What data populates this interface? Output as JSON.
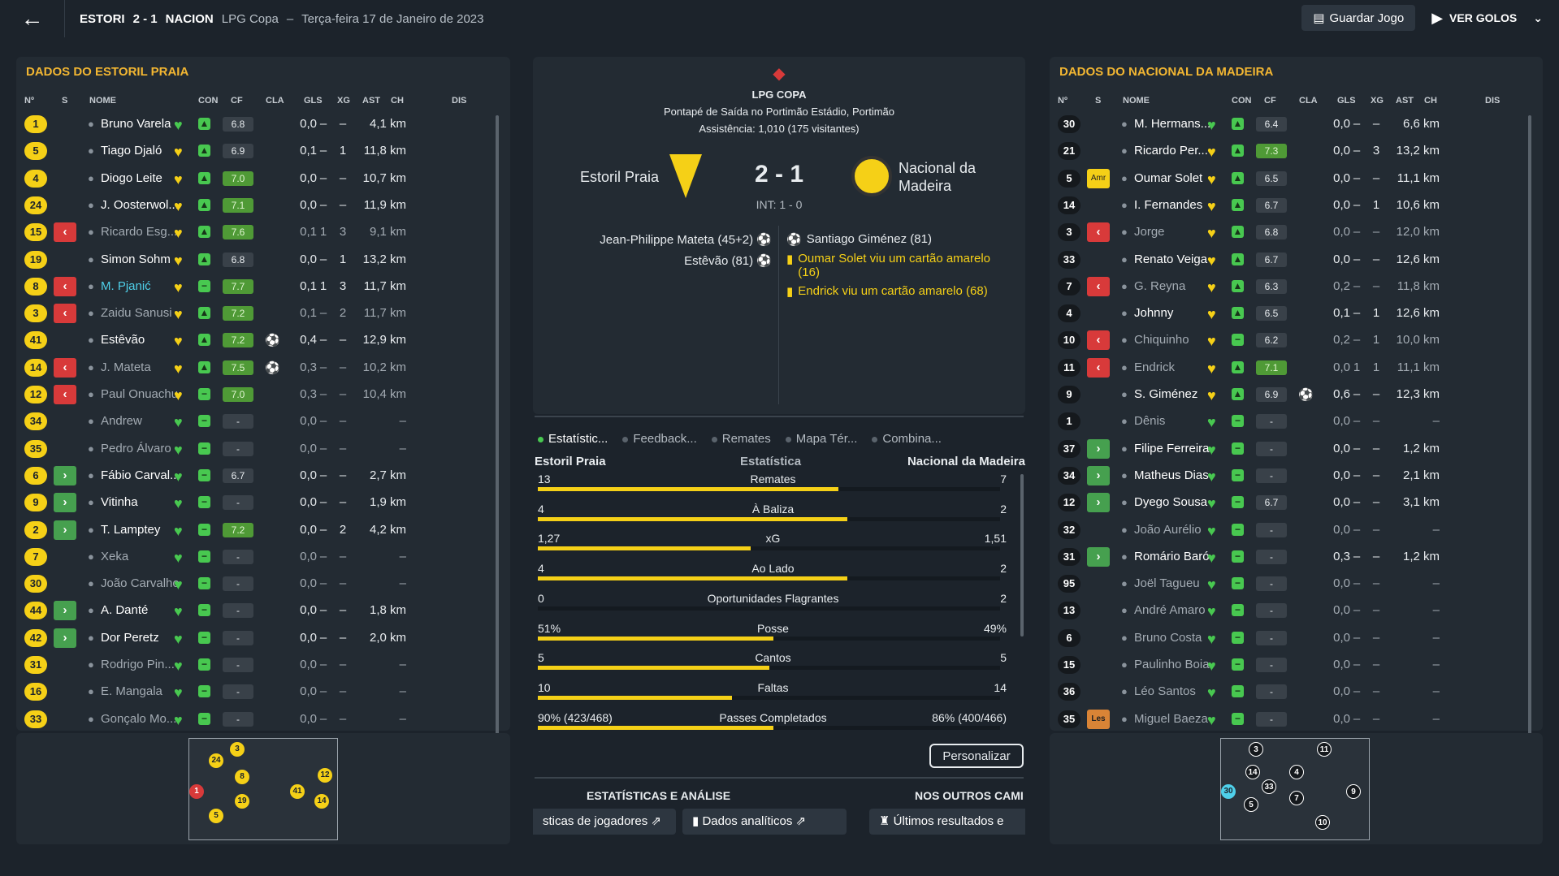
{
  "header": {
    "home_short": "ESTORI",
    "score": "2 - 1",
    "away_short": "NACION",
    "competition": "LPG Copa",
    "separator": "–",
    "date": "Terça-feira 17 de Janeiro de 2023",
    "save_label": "Guardar Jogo",
    "goals_label": "VER GOLOS"
  },
  "columns": {
    "no": "Nº",
    "s": "S",
    "name": "NOME",
    "con": "CON",
    "cf": "CF",
    "cla": "CLA",
    "gls": "GLS",
    "xg": "XG",
    "ast": "AST",
    "ch": "CH",
    "dis": "DIS"
  },
  "home": {
    "title": "DADOS DO ESTORIL PRAIA",
    "players": [
      {
        "num": "1",
        "sub": "",
        "name": "Bruno Varela",
        "cla": "6.8",
        "green": false,
        "gls": "",
        "xg": "0,0",
        "ast": "–",
        "ch": "–",
        "dis": "4,1 km",
        "heart": "g",
        "cf": "up"
      },
      {
        "num": "5",
        "sub": "",
        "name": "Tiago Djaló",
        "cla": "6.9",
        "green": false,
        "gls": "",
        "xg": "0,1",
        "ast": "–",
        "ch": "1",
        "dis": "11,8 km",
        "heart": "y",
        "cf": "up"
      },
      {
        "num": "4",
        "sub": "",
        "name": "Diogo Leite",
        "cla": "7.0",
        "green": true,
        "gls": "",
        "xg": "0,0",
        "ast": "–",
        "ch": "–",
        "dis": "10,7 km",
        "heart": "y",
        "cf": "up"
      },
      {
        "num": "24",
        "sub": "",
        "name": "J. Oosterwol...",
        "cla": "7.1",
        "green": true,
        "gls": "",
        "xg": "0,0",
        "ast": "–",
        "ch": "–",
        "dis": "11,9 km",
        "heart": "y",
        "cf": "up"
      },
      {
        "num": "15",
        "sub": "out",
        "name": "Ricardo Esg...",
        "cla": "7.6",
        "green": true,
        "gls": "",
        "xg": "0,1",
        "ast": "1",
        "ch": "3",
        "dis": "9,1 km",
        "heart": "y",
        "cf": "up",
        "dim": true
      },
      {
        "num": "19",
        "sub": "",
        "name": "Simon Sohm",
        "cla": "6.8",
        "green": false,
        "gls": "",
        "xg": "0,0",
        "ast": "–",
        "ch": "1",
        "dis": "13,2 km",
        "heart": "y",
        "cf": "up"
      },
      {
        "num": "8",
        "sub": "out",
        "name": "M. Pjanić",
        "cla": "7.7",
        "green": true,
        "gls": "",
        "xg": "0,1",
        "ast": "1",
        "ch": "3",
        "dis": "11,7 km",
        "heart": "y",
        "cf": "mid",
        "hl": true
      },
      {
        "num": "3",
        "sub": "out",
        "name": "Zaidu Sanusi",
        "cla": "7.2",
        "green": true,
        "gls": "",
        "xg": "0,1",
        "ast": "–",
        "ch": "2",
        "dis": "11,7 km",
        "heart": "y",
        "cf": "up",
        "dim": true
      },
      {
        "num": "41",
        "sub": "",
        "name": "Estêvão",
        "cla": "7.2",
        "green": true,
        "gls": "⚽",
        "xg": "0,4",
        "ast": "–",
        "ch": "–",
        "dis": "12,9 km",
        "heart": "y",
        "cf": "up"
      },
      {
        "num": "14",
        "sub": "out",
        "name": "J. Mateta",
        "cla": "7.5",
        "green": true,
        "gls": "⚽",
        "xg": "0,3",
        "ast": "–",
        "ch": "–",
        "dis": "10,2 km",
        "heart": "y",
        "cf": "up",
        "dim": true
      },
      {
        "num": "12",
        "sub": "out",
        "name": "Paul Onuachu",
        "cla": "7.0",
        "green": true,
        "gls": "",
        "xg": "0,3",
        "ast": "–",
        "ch": "–",
        "dis": "10,4 km",
        "heart": "y",
        "cf": "mid",
        "dim": true
      },
      {
        "num": "34",
        "sub": "",
        "name": "Andrew",
        "cla": "-",
        "green": false,
        "gls": "",
        "xg": "0,0",
        "ast": "–",
        "ch": "–",
        "dis": "–",
        "heart": "g",
        "cf": "mid",
        "dim": true
      },
      {
        "num": "35",
        "sub": "",
        "name": "Pedro Álvaro",
        "cla": "-",
        "green": false,
        "gls": "",
        "xg": "0,0",
        "ast": "–",
        "ch": "–",
        "dis": "–",
        "heart": "g",
        "cf": "mid",
        "dim": true
      },
      {
        "num": "6",
        "sub": "in",
        "name": "Fábio Carval...",
        "cla": "6.7",
        "green": false,
        "gls": "",
        "xg": "0,0",
        "ast": "–",
        "ch": "–",
        "dis": "2,7 km",
        "heart": "g",
        "cf": "mid"
      },
      {
        "num": "9",
        "sub": "in",
        "name": "Vitinha",
        "cla": "-",
        "green": false,
        "gls": "",
        "xg": "0,0",
        "ast": "–",
        "ch": "–",
        "dis": "1,9 km",
        "heart": "g",
        "cf": "mid"
      },
      {
        "num": "2",
        "sub": "in",
        "name": "T. Lamptey",
        "cla": "7.2",
        "green": true,
        "gls": "",
        "xg": "0,0",
        "ast": "–",
        "ch": "2",
        "dis": "4,2 km",
        "heart": "g",
        "cf": "mid"
      },
      {
        "num": "7",
        "sub": "",
        "name": "Xeka",
        "cla": "-",
        "green": false,
        "gls": "",
        "xg": "0,0",
        "ast": "–",
        "ch": "–",
        "dis": "–",
        "heart": "g",
        "cf": "mid",
        "dim": true
      },
      {
        "num": "30",
        "sub": "",
        "name": "João Carvalho",
        "cla": "-",
        "green": false,
        "gls": "",
        "xg": "0,0",
        "ast": "–",
        "ch": "–",
        "dis": "–",
        "heart": "g",
        "cf": "mid",
        "dim": true
      },
      {
        "num": "44",
        "sub": "in",
        "name": "A. Danté",
        "cla": "-",
        "green": false,
        "gls": "",
        "xg": "0,0",
        "ast": "–",
        "ch": "–",
        "dis": "1,8 km",
        "heart": "g",
        "cf": "mid"
      },
      {
        "num": "42",
        "sub": "in",
        "name": "Dor Peretz",
        "cla": "-",
        "green": false,
        "gls": "",
        "xg": "0,0",
        "ast": "–",
        "ch": "–",
        "dis": "2,0 km",
        "heart": "g",
        "cf": "mid"
      },
      {
        "num": "31",
        "sub": "",
        "name": "Rodrigo Pin...",
        "cla": "-",
        "green": false,
        "gls": "",
        "xg": "0,0",
        "ast": "–",
        "ch": "–",
        "dis": "–",
        "heart": "g",
        "cf": "mid",
        "dim": true
      },
      {
        "num": "16",
        "sub": "",
        "name": "E. Mangala",
        "cla": "-",
        "green": false,
        "gls": "",
        "xg": "0,0",
        "ast": "–",
        "ch": "–",
        "dis": "–",
        "heart": "g",
        "cf": "mid",
        "dim": true
      },
      {
        "num": "33",
        "sub": "",
        "name": "Gonçalo Mo...",
        "cla": "-",
        "green": false,
        "gls": "",
        "xg": "0,0",
        "ast": "–",
        "ch": "–",
        "dis": "–",
        "heart": "g",
        "cf": "mid",
        "dim": true
      }
    ]
  },
  "away": {
    "title": "DADOS DO NACIONAL DA MADEIRA",
    "players": [
      {
        "num": "30",
        "sub": "",
        "name": "M. Hermans...",
        "cla": "6.4",
        "green": false,
        "gls": "",
        "xg": "0,0",
        "ast": "–",
        "ch": "–",
        "dis": "6,6 km",
        "heart": "g",
        "cf": "up",
        "dark": true
      },
      {
        "num": "21",
        "sub": "",
        "name": "Ricardo Per...",
        "cla": "7.3",
        "green": true,
        "gls": "",
        "xg": "0,0",
        "ast": "–",
        "ch": "3",
        "dis": "13,2 km",
        "heart": "y",
        "cf": "up",
        "dark": true
      },
      {
        "num": "5",
        "sub": "amr",
        "name": "Oumar Solet",
        "cla": "6.5",
        "green": false,
        "gls": "",
        "xg": "0,0",
        "ast": "–",
        "ch": "–",
        "dis": "11,1 km",
        "heart": "y",
        "cf": "up",
        "dark": true
      },
      {
        "num": "14",
        "sub": "",
        "name": "I. Fernandes",
        "cla": "6.7",
        "green": false,
        "gls": "",
        "xg": "0,0",
        "ast": "–",
        "ch": "1",
        "dis": "10,6 km",
        "heart": "y",
        "cf": "up",
        "dark": true
      },
      {
        "num": "3",
        "sub": "out",
        "name": "Jorge",
        "cla": "6.8",
        "green": false,
        "gls": "",
        "xg": "0,0",
        "ast": "–",
        "ch": "–",
        "dis": "12,0 km",
        "heart": "y",
        "cf": "up",
        "dark": true,
        "dim": true
      },
      {
        "num": "33",
        "sub": "",
        "name": "Renato Veiga",
        "cla": "6.7",
        "green": false,
        "gls": "",
        "xg": "0,0",
        "ast": "–",
        "ch": "–",
        "dis": "12,6 km",
        "heart": "y",
        "cf": "up",
        "dark": true
      },
      {
        "num": "7",
        "sub": "out",
        "name": "G. Reyna",
        "cla": "6.3",
        "green": false,
        "gls": "",
        "xg": "0,2",
        "ast": "–",
        "ch": "–",
        "dis": "11,8 km",
        "heart": "y",
        "cf": "up",
        "dark": true,
        "dim": true
      },
      {
        "num": "4",
        "sub": "",
        "name": "Johnny",
        "cla": "6.5",
        "green": false,
        "gls": "",
        "xg": "0,1",
        "ast": "–",
        "ch": "1",
        "dis": "12,6 km",
        "heart": "y",
        "cf": "up",
        "dark": true
      },
      {
        "num": "10",
        "sub": "out",
        "name": "Chiquinho",
        "cla": "6.2",
        "green": false,
        "gls": "",
        "xg": "0,2",
        "ast": "–",
        "ch": "1",
        "dis": "10,0 km",
        "heart": "y",
        "cf": "mid",
        "dark": true,
        "dim": true
      },
      {
        "num": "11",
        "sub": "out",
        "name": "Endrick",
        "cla": "7.1",
        "green": true,
        "gls": "",
        "xg": "0,0",
        "ast": "1",
        "ch": "1",
        "dis": "11,1 km",
        "heart": "y",
        "cf": "up",
        "dark": true,
        "dim": true
      },
      {
        "num": "9",
        "sub": "",
        "name": "S. Giménez",
        "cla": "6.9",
        "green": false,
        "gls": "⚽",
        "xg": "0,6",
        "ast": "–",
        "ch": "–",
        "dis": "12,3 km",
        "heart": "y",
        "cf": "up",
        "dark": true
      },
      {
        "num": "1",
        "sub": "",
        "name": "Dênis",
        "cla": "-",
        "green": false,
        "gls": "",
        "xg": "0,0",
        "ast": "–",
        "ch": "–",
        "dis": "–",
        "heart": "g",
        "cf": "mid",
        "dark": true,
        "dim": true
      },
      {
        "num": "37",
        "sub": "in",
        "name": "Filipe Ferreira",
        "cla": "-",
        "green": false,
        "gls": "",
        "xg": "0,0",
        "ast": "–",
        "ch": "–",
        "dis": "1,2 km",
        "heart": "g",
        "cf": "mid",
        "dark": true
      },
      {
        "num": "34",
        "sub": "in",
        "name": "Matheus Dias",
        "cla": "-",
        "green": false,
        "gls": "",
        "xg": "0,0",
        "ast": "–",
        "ch": "–",
        "dis": "2,1 km",
        "heart": "g",
        "cf": "mid",
        "dark": true
      },
      {
        "num": "12",
        "sub": "in",
        "name": "Dyego Sousa",
        "cla": "6.7",
        "green": false,
        "gls": "",
        "xg": "0,0",
        "ast": "–",
        "ch": "–",
        "dis": "3,1 km",
        "heart": "g",
        "cf": "mid",
        "dark": true
      },
      {
        "num": "32",
        "sub": "",
        "name": "João Aurélio",
        "cla": "-",
        "green": false,
        "gls": "",
        "xg": "0,0",
        "ast": "–",
        "ch": "–",
        "dis": "–",
        "heart": "g",
        "cf": "mid",
        "dark": true,
        "dim": true
      },
      {
        "num": "31",
        "sub": "in",
        "name": "Romário Baró",
        "cla": "-",
        "green": false,
        "gls": "",
        "xg": "0,3",
        "ast": "–",
        "ch": "–",
        "dis": "1,2 km",
        "heart": "g",
        "cf": "mid",
        "dark": true
      },
      {
        "num": "95",
        "sub": "",
        "name": "Joël Tagueu",
        "cla": "-",
        "green": false,
        "gls": "",
        "xg": "0,0",
        "ast": "–",
        "ch": "–",
        "dis": "–",
        "heart": "g",
        "cf": "mid",
        "dark": true,
        "dim": true
      },
      {
        "num": "13",
        "sub": "",
        "name": "André Amaro",
        "cla": "-",
        "green": false,
        "gls": "",
        "xg": "0,0",
        "ast": "–",
        "ch": "–",
        "dis": "–",
        "heart": "g",
        "cf": "mid",
        "dark": true,
        "dim": true
      },
      {
        "num": "6",
        "sub": "",
        "name": "Bruno Costa",
        "cla": "-",
        "green": false,
        "gls": "",
        "xg": "0,0",
        "ast": "–",
        "ch": "–",
        "dis": "–",
        "heart": "g",
        "cf": "mid",
        "dark": true,
        "dim": true
      },
      {
        "num": "15",
        "sub": "",
        "name": "Paulinho Boia",
        "cla": "-",
        "green": false,
        "gls": "",
        "xg": "0,0",
        "ast": "–",
        "ch": "–",
        "dis": "–",
        "heart": "g",
        "cf": "mid",
        "dark": true,
        "dim": true
      },
      {
        "num": "36",
        "sub": "",
        "name": "Léo Santos",
        "cla": "-",
        "green": false,
        "gls": "",
        "xg": "0,0",
        "ast": "–",
        "ch": "–",
        "dis": "–",
        "heart": "g",
        "cf": "mid",
        "dark": true,
        "dim": true
      },
      {
        "num": "35",
        "sub": "les",
        "name": "Miguel Baeza",
        "cla": "-",
        "green": false,
        "gls": "",
        "xg": "0,0",
        "ast": "–",
        "ch": "–",
        "dis": "–",
        "heart": "g",
        "cf": "mid",
        "dark": true,
        "dim": true
      }
    ]
  },
  "match": {
    "competition": "LPG COPA",
    "venue": "Pontapé de Saída no Portimão Estádio, Portimão",
    "attendance": "Assistência: 1,010 (175 visitantes)",
    "home_team": "Estoril Praia",
    "away_team": "Nacional da Madeira",
    "score": "2 - 1",
    "halftime": "INT: 1 - 0",
    "home_events": [
      "Jean-Philippe Mateta (45+2)",
      "Estêvão (81)"
    ],
    "away_events": [
      {
        "text": "Santiago Giménez (81)",
        "type": "goal"
      },
      {
        "text": "Oumar Solet viu um cartão amarelo (16)",
        "type": "card"
      },
      {
        "text": "Endrick viu um cartão amarelo (68)",
        "type": "card"
      }
    ]
  },
  "tabs": [
    "Estatístic...",
    "Feedback...",
    "Remates",
    "Mapa Tér...",
    "Combina..."
  ],
  "stats": {
    "home_label": "Estoril Praia",
    "mid_label": "Estatística",
    "away_label": "Nacional da Madeira",
    "rows": [
      {
        "l": "13",
        "name": "Remates",
        "r": "7",
        "frac": 0.65
      },
      {
        "l": "4",
        "name": "À Baliza",
        "r": "2",
        "frac": 0.67
      },
      {
        "l": "1,27",
        "name": "xG",
        "r": "1,51",
        "frac": 0.46
      },
      {
        "l": "4",
        "name": "Ao Lado",
        "r": "2",
        "frac": 0.67
      },
      {
        "l": "0",
        "name": "Oportunidades Flagrantes",
        "r": "2",
        "frac": 0
      },
      {
        "l": "51%",
        "name": "Posse",
        "r": "49%",
        "frac": 0.51
      },
      {
        "l": "5",
        "name": "Cantos",
        "r": "5",
        "frac": 0.5
      },
      {
        "l": "10",
        "name": "Faltas",
        "r": "14",
        "frac": 0.42
      },
      {
        "l": "90% (423/468)",
        "name": "Passes Completados",
        "r": "86% (400/466)",
        "frac": 0.51
      }
    ]
  },
  "customize_label": "Personalizar",
  "sections": {
    "analysis": "ESTATÍSTICAS E ANÁLISE",
    "others": "NOS OUTROS CAMI"
  },
  "links": {
    "players_stats": "sticas de jogadores",
    "analytics": "Dados analíticos",
    "latest": "Últimos resultados e"
  }
}
